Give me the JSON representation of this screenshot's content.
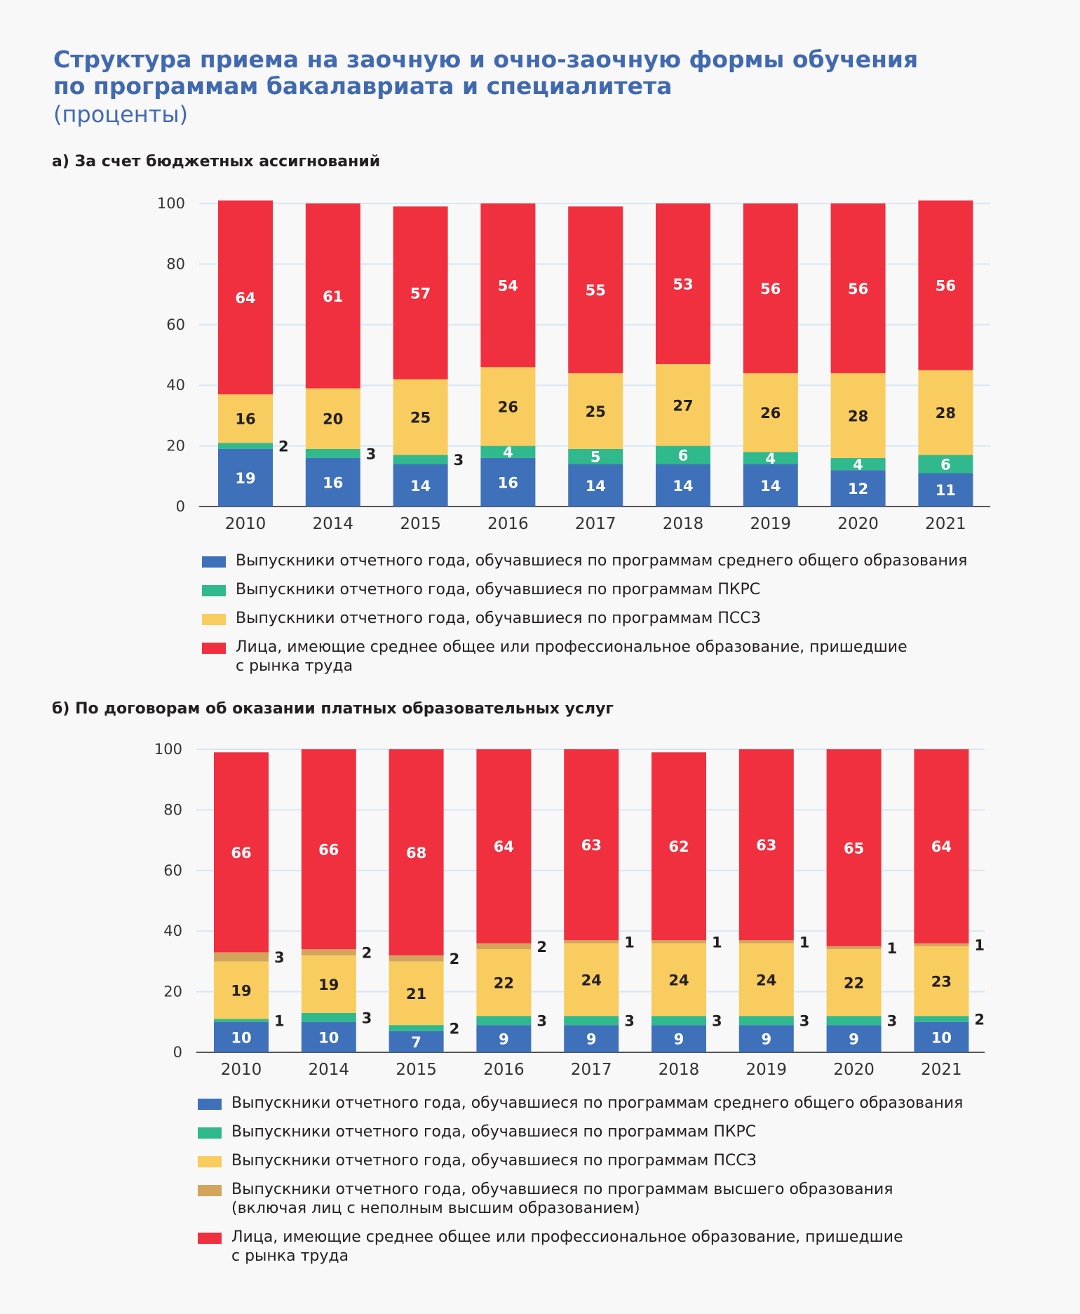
{
  "header": {
    "title_lines": [
      "Структура приема на заочную и очно-заочную формы обучения",
      "по программам бакалавриата и специалитета"
    ],
    "subtitle": "(проценты)"
  },
  "colors": {
    "school": "#3f71bb",
    "pkrs": "#2fb98c",
    "pssz": "#f8cc5e",
    "higher": "#d3a55c",
    "labor": "#f0303f",
    "grid": "#d8e6f3",
    "axis": "#555555"
  },
  "chart_data": [
    {
      "type": "bar",
      "stacked": true,
      "title": "а) За счет бюджетных ассигнований",
      "categories": [
        "2010",
        "2014",
        "2015",
        "2016",
        "2017",
        "2018",
        "2019",
        "2020",
        "2021"
      ],
      "ylim": [
        0,
        100
      ],
      "yticks": [
        0,
        20,
        40,
        60,
        80,
        100
      ],
      "grid": true,
      "series": [
        {
          "key": "school",
          "color": "#3f71bb",
          "values": [
            19,
            16,
            14,
            16,
            14,
            14,
            14,
            12,
            11
          ],
          "label_outside": [
            false,
            false,
            false,
            false,
            false,
            false,
            false,
            false,
            false
          ]
        },
        {
          "key": "pkrs",
          "color": "#2fb98c",
          "values": [
            2,
            3,
            3,
            4,
            5,
            6,
            4,
            4,
            6
          ],
          "label_outside": [
            true,
            true,
            true,
            false,
            false,
            false,
            false,
            false,
            false
          ]
        },
        {
          "key": "pssz",
          "color": "#f8cc5e",
          "values": [
            16,
            20,
            25,
            26,
            25,
            27,
            26,
            28,
            28
          ],
          "label_outside": [
            false,
            false,
            false,
            false,
            false,
            false,
            false,
            false,
            false
          ]
        },
        {
          "key": "labor",
          "color": "#f0303f",
          "values": [
            64,
            61,
            57,
            54,
            55,
            53,
            56,
            56,
            56
          ],
          "label_outside": [
            false,
            false,
            false,
            false,
            false,
            false,
            false,
            false,
            false
          ]
        }
      ],
      "legend": [
        {
          "key": "school",
          "color": "#3f71bb",
          "lines": [
            "Выпускники отчетного года, обучавшиеся по программам среднего общего образования"
          ]
        },
        {
          "key": "pkrs",
          "color": "#2fb98c",
          "lines": [
            "Выпускники отчетного года, обучавшиеся по программам ПКРС"
          ]
        },
        {
          "key": "pssz",
          "color": "#f8cc5e",
          "lines": [
            "Выпускники отчетного года, обучавшиеся по программам ПССЗ"
          ]
        },
        {
          "key": "labor",
          "color": "#f0303f",
          "lines": [
            "Лица, имеющие среднее общее или профессиональное образование, пришедшие",
            "с рынка труда"
          ]
        }
      ]
    },
    {
      "type": "bar",
      "stacked": true,
      "title": "б) По договорам об оказании платных образовательных услуг",
      "categories": [
        "2010",
        "2014",
        "2015",
        "2016",
        "2017",
        "2018",
        "2019",
        "2020",
        "2021"
      ],
      "ylim": [
        0,
        100
      ],
      "yticks": [
        0,
        20,
        40,
        60,
        80,
        100
      ],
      "grid": true,
      "series": [
        {
          "key": "school",
          "color": "#3f71bb",
          "values": [
            10,
            10,
            7,
            9,
            9,
            9,
            9,
            9,
            10
          ],
          "label_outside": [
            false,
            false,
            false,
            false,
            false,
            false,
            false,
            false,
            false
          ]
        },
        {
          "key": "pkrs",
          "color": "#2fb98c",
          "values": [
            1,
            3,
            2,
            3,
            3,
            3,
            3,
            3,
            2
          ],
          "label_outside": [
            true,
            true,
            true,
            true,
            true,
            true,
            true,
            true,
            true
          ]
        },
        {
          "key": "pssz",
          "color": "#f8cc5e",
          "values": [
            19,
            19,
            21,
            22,
            24,
            24,
            24,
            22,
            23
          ],
          "label_outside": [
            false,
            false,
            false,
            false,
            false,
            false,
            false,
            false,
            false
          ]
        },
        {
          "key": "higher",
          "color": "#d3a55c",
          "values": [
            3,
            2,
            2,
            2,
            1,
            1,
            1,
            1,
            1
          ],
          "label_outside": [
            true,
            true,
            true,
            true,
            true,
            true,
            true,
            true,
            true
          ]
        },
        {
          "key": "labor",
          "color": "#f0303f",
          "values": [
            66,
            66,
            68,
            64,
            63,
            62,
            63,
            65,
            64
          ],
          "label_outside": [
            false,
            false,
            false,
            false,
            false,
            false,
            false,
            false,
            false
          ]
        }
      ],
      "legend": [
        {
          "key": "school",
          "color": "#3f71bb",
          "lines": [
            "Выпускники отчетного года, обучавшиеся по программам среднего общего образования"
          ]
        },
        {
          "key": "pkrs",
          "color": "#2fb98c",
          "lines": [
            "Выпускники отчетного года, обучавшиеся по программам ПКРС"
          ]
        },
        {
          "key": "pssz",
          "color": "#f8cc5e",
          "lines": [
            "Выпускники отчетного года, обучавшиеся по программам ПССЗ"
          ]
        },
        {
          "key": "higher",
          "color": "#d3a55c",
          "lines": [
            "Выпускники отчетного года, обучавшиеся по программам высшего образования",
            "(включая лиц с неполным высшим образованием)"
          ]
        },
        {
          "key": "labor",
          "color": "#f0303f",
          "lines": [
            "Лица, имеющие среднее общее или профессиональное образование, пришедшие",
            "с рынка труда"
          ]
        }
      ]
    }
  ]
}
